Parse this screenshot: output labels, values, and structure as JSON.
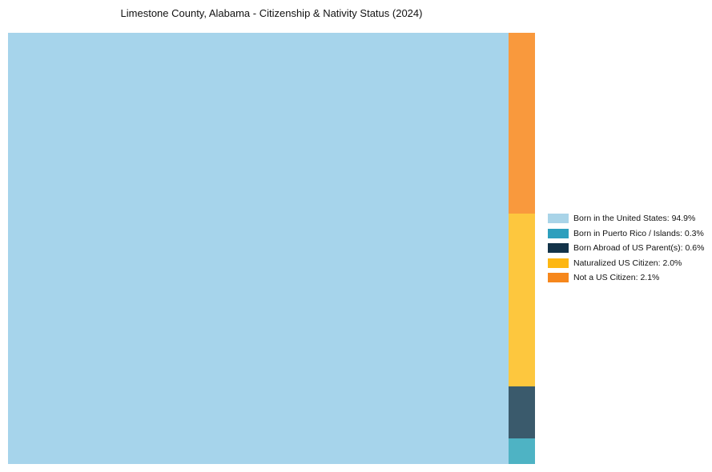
{
  "chart_data": {
    "type": "treemap",
    "title": "Limestone County, Alabama - Citizenship & Nativity Status (2024)",
    "legend_position": "right",
    "categories": [
      "Born in the United States",
      "Born in Puerto Rico / Islands",
      "Born Abroad of US Parent(s)",
      "Naturalized US Citizen",
      "Not a US Citizen"
    ],
    "values": [
      94.9,
      0.3,
      0.6,
      2.0,
      2.1
    ],
    "items": [
      {
        "id": "born-us",
        "label": "Born in the United States: 94.9%",
        "value": 94.9,
        "tile_color": "#a6d4eb",
        "legend_color": "#a9d4e8"
      },
      {
        "id": "puerto-rico",
        "label": "Born in Puerto Rico / Islands: 0.3%",
        "value": 0.3,
        "tile_color": "#4eb3c4",
        "legend_color": "#2d9fbd"
      },
      {
        "id": "born-abroad",
        "label": "Born Abroad of US Parent(s): 0.6%",
        "value": 0.6,
        "tile_color": "#3a5a6c",
        "legend_color": "#133349"
      },
      {
        "id": "naturalized",
        "label": "Naturalized US Citizen: 2.0%",
        "value": 2.0,
        "tile_color": "#fdc73e",
        "legend_color": "#fdb713"
      },
      {
        "id": "not-citizen",
        "label": "Not a US Citizen: 2.1%",
        "value": 2.1,
        "tile_color": "#f9993d",
        "legend_color": "#f6871c"
      }
    ]
  }
}
